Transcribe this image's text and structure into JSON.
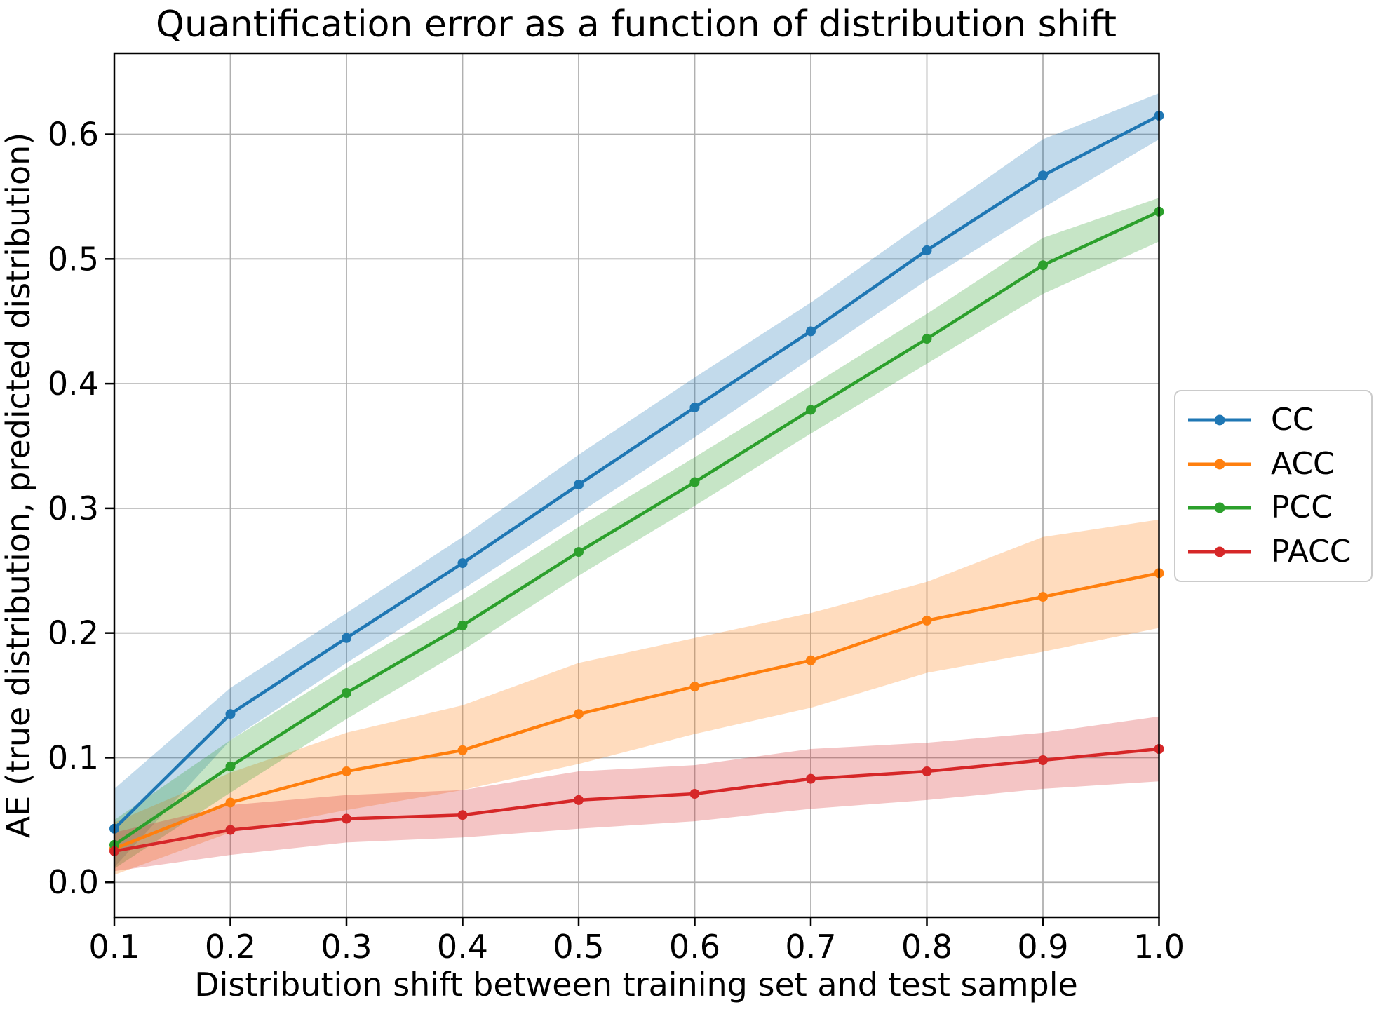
{
  "chart_data": {
    "type": "line",
    "title": "Quantification error as a function of distribution shift",
    "xlabel": "Distribution shift between training set and test sample",
    "ylabel": "AE (true distribution, predicted distribution)",
    "x": [
      0.1,
      0.2,
      0.3,
      0.4,
      0.5,
      0.6,
      0.7,
      0.8,
      0.9,
      1.0
    ],
    "xticks": [
      "0.1",
      "0.2",
      "0.3",
      "0.4",
      "0.5",
      "0.6",
      "0.7",
      "0.8",
      "0.9",
      "1.0"
    ],
    "yticks": [
      "0.0",
      "0.1",
      "0.2",
      "0.3",
      "0.4",
      "0.5",
      "0.6"
    ],
    "xlim": [
      0.1,
      1.0
    ],
    "ylim": [
      -0.028,
      0.665
    ],
    "grid": true,
    "legend_position": "center right outside",
    "band_opacity": 0.27,
    "series": [
      {
        "name": "CC",
        "color": "#1f77b4",
        "values": [
          0.043,
          0.135,
          0.196,
          0.256,
          0.319,
          0.381,
          0.442,
          0.507,
          0.567,
          0.615
        ],
        "lo": [
          0.012,
          0.114,
          0.176,
          0.235,
          0.296,
          0.357,
          0.42,
          0.483,
          0.541,
          0.596
        ],
        "hi": [
          0.075,
          0.156,
          0.216,
          0.277,
          0.343,
          0.405,
          0.465,
          0.531,
          0.596,
          0.633
        ]
      },
      {
        "name": "ACC",
        "color": "#ff7f0e",
        "values": [
          0.027,
          0.064,
          0.089,
          0.106,
          0.135,
          0.157,
          0.178,
          0.21,
          0.229,
          0.248
        ],
        "lo": [
          0.006,
          0.04,
          0.058,
          0.074,
          0.095,
          0.119,
          0.14,
          0.168,
          0.185,
          0.204
        ],
        "hi": [
          0.048,
          0.088,
          0.12,
          0.142,
          0.176,
          0.196,
          0.216,
          0.241,
          0.277,
          0.291
        ]
      },
      {
        "name": "PCC",
        "color": "#2ca02c",
        "values": [
          0.03,
          0.093,
          0.152,
          0.206,
          0.265,
          0.321,
          0.379,
          0.436,
          0.495,
          0.538
        ],
        "lo": [
          0.011,
          0.072,
          0.131,
          0.186,
          0.246,
          0.302,
          0.36,
          0.416,
          0.472,
          0.514
        ],
        "hi": [
          0.05,
          0.114,
          0.172,
          0.226,
          0.285,
          0.341,
          0.398,
          0.456,
          0.517,
          0.549
        ]
      },
      {
        "name": "PACC",
        "color": "#d62728",
        "values": [
          0.025,
          0.042,
          0.051,
          0.054,
          0.066,
          0.071,
          0.083,
          0.089,
          0.098,
          0.107
        ],
        "lo": [
          0.009,
          0.022,
          0.032,
          0.036,
          0.043,
          0.049,
          0.059,
          0.066,
          0.075,
          0.081
        ],
        "hi": [
          0.04,
          0.062,
          0.07,
          0.074,
          0.089,
          0.094,
          0.107,
          0.112,
          0.12,
          0.133
        ]
      }
    ]
  },
  "colors": {
    "grid": "#b0b0b0",
    "spine": "#000000",
    "background": "#ffffff"
  }
}
